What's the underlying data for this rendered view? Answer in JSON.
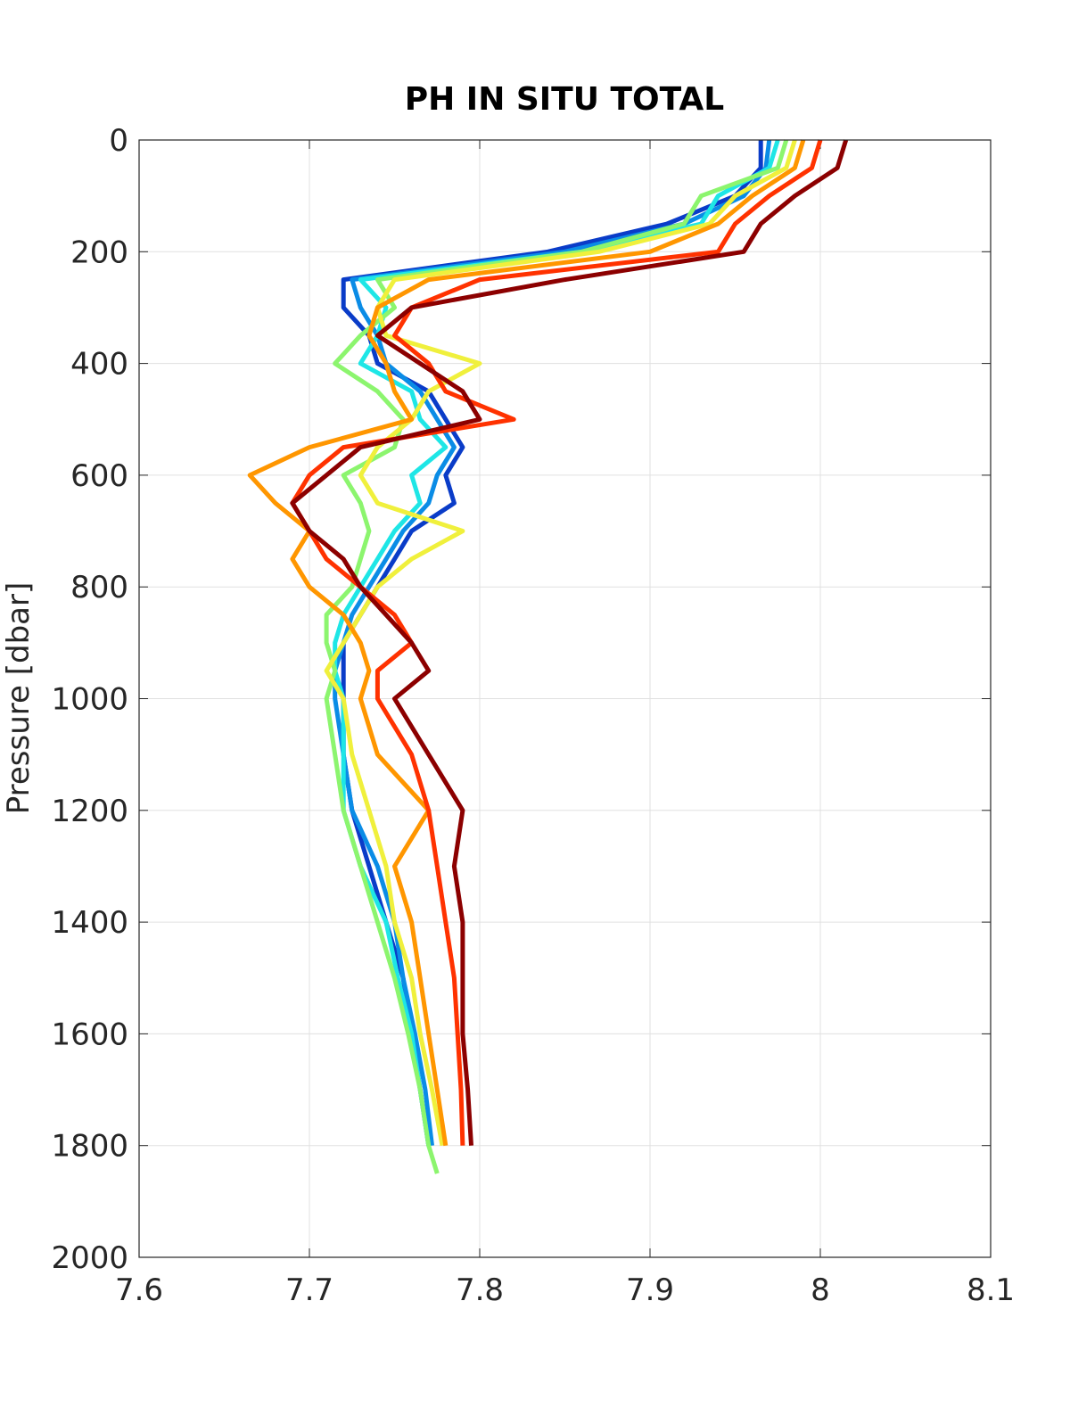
{
  "chart_data": {
    "type": "line",
    "title": "PH IN SITU TOTAL",
    "y_label": "Pressure [dbar]",
    "xlim": [
      7.6,
      8.1
    ],
    "xticks": [
      7.6,
      7.7,
      7.8,
      7.9,
      8,
      8.1
    ],
    "ylim": [
      0,
      2000
    ],
    "yticks": [
      0,
      200,
      400,
      600,
      800,
      1000,
      1200,
      1400,
      1600,
      1800,
      2000
    ],
    "y_inverted": true,
    "grid": true,
    "series": [
      {
        "color": "#0a3cc8",
        "y": [
          0,
          50,
          100,
          150,
          200,
          250,
          300,
          350,
          400,
          450,
          500,
          550,
          600,
          650,
          700,
          750,
          800,
          850,
          900,
          950,
          1000,
          1100,
          1200,
          1300,
          1400,
          1500,
          1600,
          1700,
          1800
        ],
        "x": [
          7.965,
          7.965,
          7.95,
          7.91,
          7.84,
          7.72,
          7.72,
          7.735,
          7.74,
          7.77,
          7.78,
          7.79,
          7.78,
          7.785,
          7.76,
          7.75,
          7.74,
          7.73,
          7.72,
          7.72,
          7.72,
          7.72,
          7.725,
          7.735,
          7.745,
          7.755,
          7.76,
          7.765,
          7.77
        ]
      },
      {
        "color": "#0a8ce6",
        "y": [
          0,
          50,
          100,
          150,
          200,
          250,
          300,
          350,
          400,
          450,
          500,
          550,
          600,
          650,
          700,
          750,
          800,
          850,
          900,
          950,
          1000,
          1100,
          1200,
          1300,
          1400,
          1500,
          1600,
          1700,
          1800
        ],
        "x": [
          7.97,
          7.968,
          7.955,
          7.92,
          7.85,
          7.725,
          7.73,
          7.74,
          7.745,
          7.765,
          7.775,
          7.785,
          7.775,
          7.77,
          7.755,
          7.745,
          7.735,
          7.725,
          7.72,
          7.715,
          7.715,
          7.72,
          7.725,
          7.74,
          7.75,
          7.755,
          7.762,
          7.768,
          7.772
        ]
      },
      {
        "color": "#1ee6e6",
        "y": [
          0,
          50,
          100,
          150,
          200,
          250,
          300,
          350,
          400,
          450,
          500,
          550,
          600,
          650,
          700,
          750,
          800,
          850,
          900,
          950,
          1000,
          1100,
          1200,
          1300,
          1400,
          1500,
          1600,
          1700,
          1800
        ],
        "x": [
          7.975,
          7.97,
          7.94,
          7.93,
          7.86,
          7.73,
          7.745,
          7.74,
          7.73,
          7.76,
          7.765,
          7.78,
          7.76,
          7.765,
          7.75,
          7.74,
          7.73,
          7.72,
          7.715,
          7.715,
          7.72,
          7.72,
          7.72,
          7.73,
          7.745,
          7.752,
          7.76,
          7.765,
          7.77
        ]
      },
      {
        "color": "#8cf56e",
        "y": [
          0,
          50,
          100,
          150,
          200,
          250,
          300,
          350,
          400,
          450,
          500,
          550,
          600,
          650,
          700,
          750,
          800,
          850,
          900,
          950,
          1000,
          1100,
          1200,
          1300,
          1400,
          1500,
          1600,
          1700,
          1800,
          1850
        ],
        "x": [
          7.98,
          7.975,
          7.93,
          7.92,
          7.86,
          7.74,
          7.75,
          7.73,
          7.715,
          7.74,
          7.755,
          7.75,
          7.72,
          7.73,
          7.735,
          7.73,
          7.725,
          7.71,
          7.71,
          7.715,
          7.71,
          7.715,
          7.72,
          7.73,
          7.74,
          7.75,
          7.758,
          7.765,
          7.77,
          7.775
        ]
      },
      {
        "color": "#f0f03c",
        "y": [
          0,
          50,
          100,
          150,
          200,
          250,
          300,
          350,
          400,
          450,
          500,
          550,
          600,
          650,
          700,
          750,
          800,
          850,
          900,
          950,
          1000,
          1100,
          1200,
          1300,
          1400,
          1500,
          1600,
          1700,
          1800
        ],
        "x": [
          7.985,
          7.98,
          7.95,
          7.935,
          7.87,
          7.75,
          7.74,
          7.745,
          7.8,
          7.77,
          7.76,
          7.74,
          7.73,
          7.74,
          7.79,
          7.76,
          7.74,
          7.73,
          7.72,
          7.71,
          7.72,
          7.725,
          7.735,
          7.745,
          7.75,
          7.76,
          7.765,
          7.772,
          7.778
        ]
      },
      {
        "color": "#ff9600",
        "y": [
          0,
          50,
          100,
          150,
          200,
          250,
          300,
          350,
          400,
          450,
          500,
          550,
          600,
          650,
          700,
          750,
          800,
          850,
          900,
          950,
          1000,
          1100,
          1200,
          1300,
          1400,
          1500,
          1600,
          1700,
          1800
        ],
        "x": [
          7.99,
          7.985,
          7.96,
          7.94,
          7.9,
          7.77,
          7.74,
          7.735,
          7.745,
          7.75,
          7.76,
          7.7,
          7.665,
          7.68,
          7.7,
          7.69,
          7.7,
          7.72,
          7.73,
          7.735,
          7.73,
          7.74,
          7.77,
          7.75,
          7.76,
          7.765,
          7.77,
          7.775,
          7.78
        ]
      },
      {
        "color": "#ff3200",
        "y": [
          0,
          50,
          100,
          150,
          200,
          250,
          300,
          350,
          400,
          450,
          500,
          550,
          600,
          650,
          700,
          750,
          800,
          850,
          900,
          950,
          1000,
          1100,
          1200,
          1300,
          1400,
          1500,
          1600,
          1700,
          1800
        ],
        "x": [
          8.0,
          7.995,
          7.97,
          7.95,
          7.94,
          7.8,
          7.76,
          7.75,
          7.77,
          7.78,
          7.82,
          7.72,
          7.7,
          7.69,
          7.7,
          7.71,
          7.73,
          7.75,
          7.76,
          7.74,
          7.74,
          7.76,
          7.77,
          7.775,
          7.78,
          7.785,
          7.787,
          7.789,
          7.79
        ]
      },
      {
        "color": "#8c0000",
        "y": [
          0,
          50,
          100,
          150,
          200,
          250,
          300,
          350,
          400,
          450,
          500,
          550,
          600,
          650,
          700,
          750,
          800,
          850,
          900,
          950,
          1000,
          1100,
          1200,
          1300,
          1400,
          1500,
          1600,
          1700,
          1800
        ],
        "x": [
          8.015,
          8.01,
          7.985,
          7.965,
          7.955,
          7.85,
          7.76,
          7.74,
          7.765,
          7.79,
          7.8,
          7.73,
          7.71,
          7.69,
          7.7,
          7.72,
          7.73,
          7.745,
          7.76,
          7.77,
          7.75,
          7.77,
          7.79,
          7.785,
          7.79,
          7.79,
          7.79,
          7.793,
          7.795
        ]
      }
    ]
  }
}
